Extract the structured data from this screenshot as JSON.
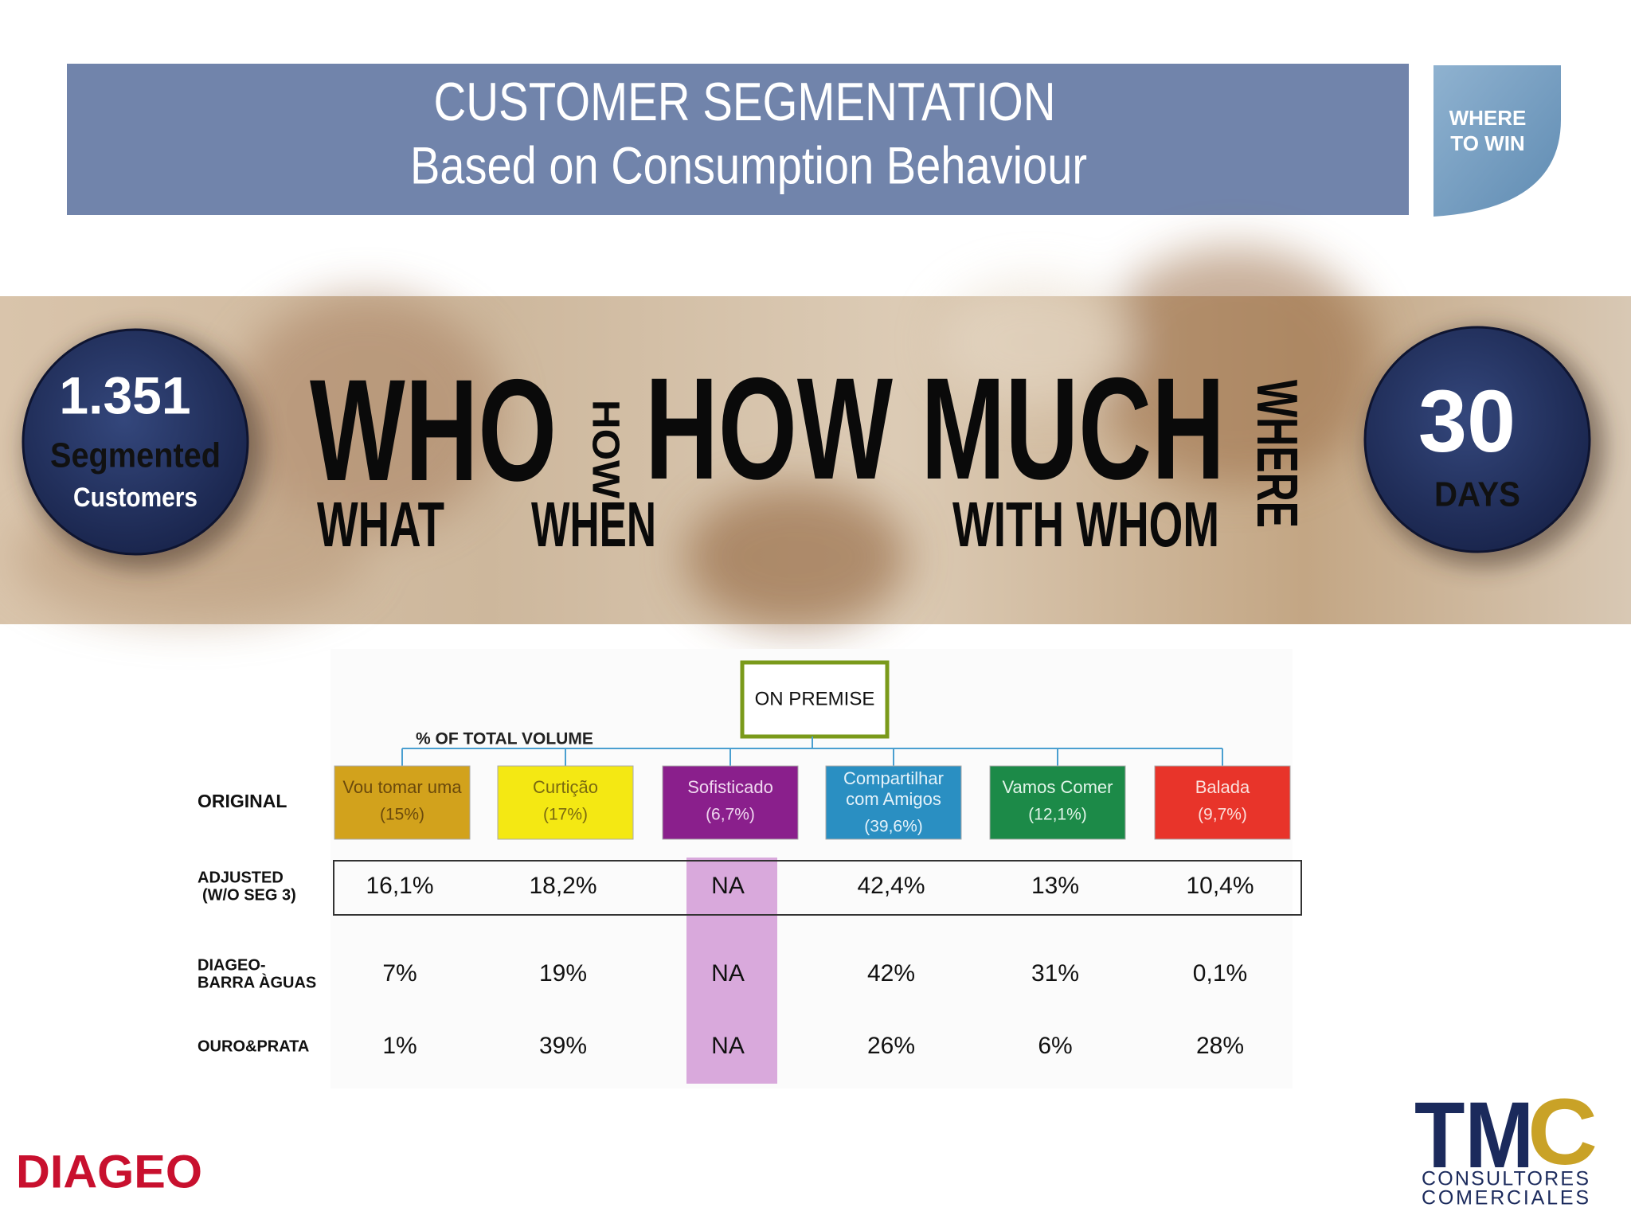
{
  "header": {
    "title": "CUSTOMER SEGMENTATION",
    "subtitle": "Based on Consumption Behaviour",
    "tab": [
      "WHERE",
      "TO WIN"
    ]
  },
  "banner": {
    "left_badge": {
      "number": "1.351",
      "line1": "Segmented",
      "line2": "Customers"
    },
    "words": {
      "who": "WHO",
      "how": "HOW",
      "how_much": "HOW MUCH",
      "where": "WHERE",
      "what": "WHAT",
      "when": "WHEN",
      "with_whom": "WITH WHOM"
    },
    "right_badge": {
      "number": "30",
      "unit": "DAYS"
    }
  },
  "table": {
    "group": "ON PREMISE",
    "caption": "% OF TOTAL VOLUME",
    "original_label": "ORIGINAL",
    "segments": [
      {
        "name": [
          "Vou tomar uma"
        ],
        "share": "(15%)",
        "color": "#d2a21c",
        "text_color": "#6b4a0c"
      },
      {
        "name": [
          "Curtição"
        ],
        "share": "(17%)",
        "color": "#f4e813",
        "text_color": "#7a6a10"
      },
      {
        "name": [
          "Sofisticado"
        ],
        "share": "(6,7%)",
        "color": "#8a1f8c",
        "text_color": "#f0d8f0"
      },
      {
        "name": [
          "Compartilhar",
          "com Amigos"
        ],
        "share": "(39,6%)",
        "color": "#2a8fc2",
        "text_color": "#e4f2fa"
      },
      {
        "name": [
          "Vamos Comer"
        ],
        "share": "(12,1%)",
        "color": "#1c8a48",
        "text_color": "#e0f4e8"
      },
      {
        "name": [
          "Balada"
        ],
        "share": "(9,7%)",
        "color": "#e8342a",
        "text_color": "#fbe0dc"
      }
    ],
    "rows": [
      {
        "label": [
          "ADJUSTED",
          "(W/O SEG 3)"
        ],
        "values": [
          "16,1%",
          "18,2%",
          "NA",
          "42,4%",
          "13%",
          "10,4%"
        ]
      },
      {
        "label": [
          "DIAGEO-",
          "BARRA ÀGUAS"
        ],
        "values": [
          "7%",
          "19%",
          "NA",
          "42%",
          "31%",
          "0,1%"
        ]
      },
      {
        "label": [
          "OURO&PRATA"
        ],
        "values": [
          "1%",
          "39%",
          "NA",
          "26%",
          "6%",
          "28%"
        ]
      }
    ]
  },
  "footer": {
    "diageo": "DIAGEO",
    "tmc": {
      "mark": "TM",
      "accent": "C",
      "line1": "CONSULTORES",
      "line2": "COMERCIALES"
    }
  }
}
